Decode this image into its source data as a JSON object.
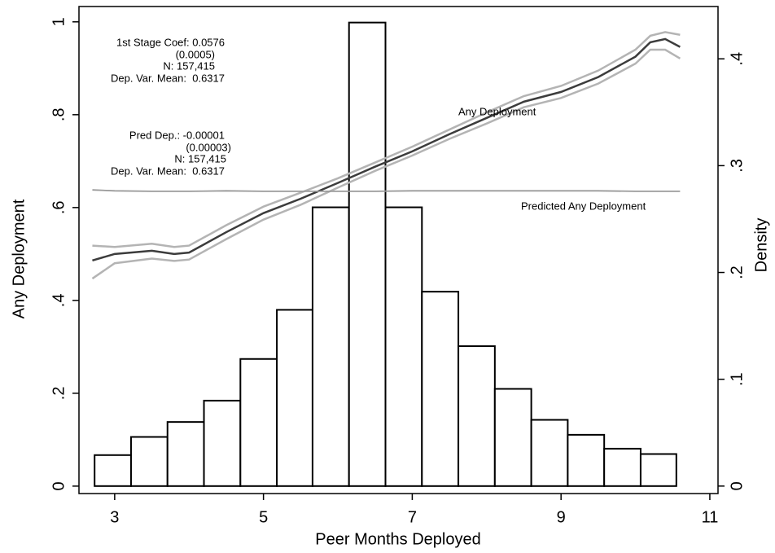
{
  "chart_data": {
    "type": "line",
    "xlabel": "Peer Months Deployed",
    "ylabel": "Any Deployment",
    "y2label": "Density",
    "xlim": [
      2.52,
      11.11
    ],
    "xticks": [
      3,
      5,
      7,
      9,
      11
    ],
    "ylim": [
      -0.016,
      1.033
    ],
    "yticks": [
      0,
      {
        "value": 0.2,
        "label": ".2"
      },
      {
        "value": 0.4,
        "label": ".4"
      },
      {
        "value": 0.6,
        "label": ".6"
      },
      {
        "value": 0.8,
        "label": ".8"
      },
      1
    ],
    "y2lim": [
      -0.007,
      0.449
    ],
    "y2ticks": [
      0,
      {
        "value": 0.1,
        "label": ".1"
      },
      {
        "value": 0.2,
        "label": ".2"
      },
      {
        "value": 0.3,
        "label": ".3"
      },
      {
        "value": 0.4,
        "label": ".4"
      }
    ],
    "histogram": {
      "type": "histogram",
      "axis": "y2",
      "color": "#ffffff",
      "bins": [
        2.73,
        3.22,
        3.71,
        4.2,
        4.69,
        5.18,
        5.66,
        6.15,
        6.64,
        7.13,
        7.62,
        8.11,
        8.6,
        9.09,
        9.58,
        10.07,
        10.55
      ],
      "values": [
        0.029,
        0.046,
        0.06,
        0.08,
        0.119,
        0.165,
        0.261,
        0.434,
        0.261,
        0.182,
        0.131,
        0.091,
        0.062,
        0.048,
        0.035,
        0.03
      ]
    },
    "x": [
      2.7,
      3.0,
      3.5,
      3.8,
      4.0,
      4.5,
      5.0,
      5.5,
      6.0,
      6.5,
      7.0,
      7.5,
      8.0,
      8.5,
      9.0,
      9.5,
      10.0,
      10.2,
      10.4,
      10.6
    ],
    "series": [
      {
        "color": "#b4b4b4",
        "values": [
          0.518,
          0.515,
          0.522,
          0.515,
          0.518,
          0.562,
          0.602,
          0.632,
          0.663,
          0.697,
          0.731,
          0.768,
          0.805,
          0.84,
          0.862,
          0.895,
          0.94,
          0.97,
          0.978,
          0.972
        ]
      },
      {
        "color": "#b4b4b4",
        "values": [
          0.447,
          0.48,
          0.49,
          0.485,
          0.488,
          0.532,
          0.574,
          0.606,
          0.643,
          0.679,
          0.712,
          0.748,
          0.781,
          0.816,
          0.836,
          0.867,
          0.91,
          0.94,
          0.94,
          0.921
        ]
      },
      {
        "name": "Any Deployment",
        "color": "#3c3c3c",
        "values": [
          0.486,
          0.5,
          0.507,
          0.5,
          0.503,
          0.547,
          0.588,
          0.619,
          0.653,
          0.688,
          0.721,
          0.758,
          0.793,
          0.828,
          0.849,
          0.881,
          0.925,
          0.956,
          0.963,
          0.946
        ]
      },
      {
        "name": "Predicted Any Deployment",
        "color": "#9a9a9a",
        "values": [
          0.638,
          0.636,
          0.635,
          0.635,
          0.635,
          0.636,
          0.635,
          0.635,
          0.635,
          0.635,
          0.636,
          0.636,
          0.636,
          0.636,
          0.636,
          0.636,
          0.635,
          0.635,
          0.635,
          0.635
        ]
      }
    ],
    "notes": [
      [
        "1st Stage Coef: 0.0576",
        "(0.0005)",
        "N: 157,415",
        "Dep. Var. Mean:  0.6317"
      ],
      [
        "Pred Dep.: -0.00001",
        "(0.00003)",
        "N: 157,415",
        "Dep. Var. Mean:  0.6317"
      ]
    ]
  }
}
